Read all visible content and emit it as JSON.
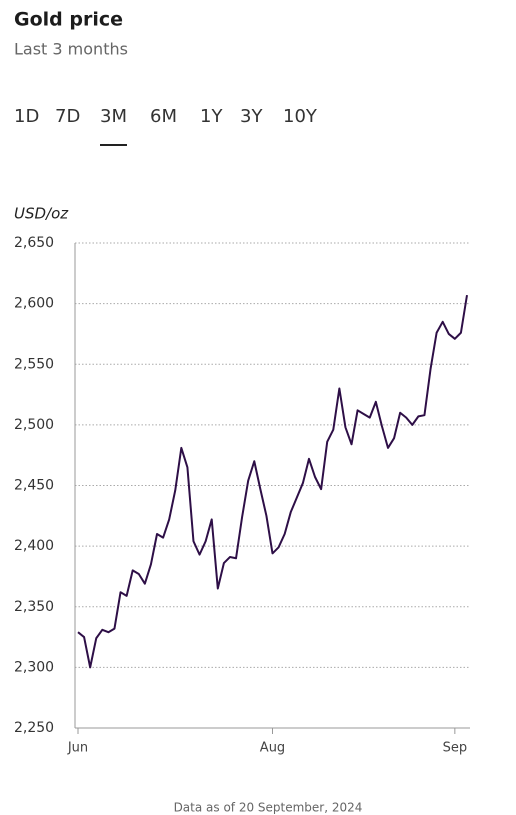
{
  "header": {
    "title": "Gold price",
    "subtitle": "Last 3 months"
  },
  "tabs": [
    "1D",
    "7D",
    "3M",
    "6M",
    "1Y",
    "3Y",
    "10Y"
  ],
  "active_tab_index": 2,
  "chart_data": {
    "type": "line",
    "y_label": "USD/oz",
    "categories": [
      "Jun",
      null,
      null,
      null,
      null,
      null,
      null,
      null,
      null,
      null,
      null,
      null,
      null,
      null,
      null,
      null,
      null,
      null,
      null,
      null,
      null,
      null,
      null,
      null,
      null,
      null,
      null,
      null,
      null,
      null,
      null,
      null,
      "Aug",
      null,
      null,
      null,
      null,
      null,
      null,
      null,
      null,
      null,
      null,
      null,
      null,
      null,
      null,
      null,
      null,
      null,
      null,
      null,
      null,
      null,
      null,
      null,
      null,
      null,
      null,
      null,
      null,
      null,
      "Sep",
      null,
      null
    ],
    "series": [
      {
        "name": "Gold price",
        "color": "#2e0f47",
        "values": [
          2329,
          2325,
          2300,
          2324,
          2331,
          2329,
          2332,
          2362,
          2359,
          2380,
          2377,
          2369,
          2385,
          2410,
          2407,
          2422,
          2446,
          2481,
          2465,
          2404,
          2393,
          2404,
          2422,
          2365,
          2386,
          2391,
          2390,
          2424,
          2454,
          2470,
          2447,
          2425,
          2394,
          2399,
          2410,
          2428,
          2440,
          2452,
          2472,
          2457,
          2447,
          2486,
          2496,
          2530,
          2498,
          2484,
          2512,
          2509,
          2506,
          2519,
          2499,
          2481,
          2489,
          2510,
          2506,
          2500,
          2507,
          2508,
          2546,
          2576,
          2585,
          2575,
          2571,
          2576,
          2607
        ]
      }
    ],
    "ylim": [
      2250,
      2650
    ],
    "yticks": [
      {
        "value": 2250,
        "label": "2,250"
      },
      {
        "value": 2300,
        "label": "2,300"
      },
      {
        "value": 2350,
        "label": "2,350"
      },
      {
        "value": 2400,
        "label": "2,400"
      },
      {
        "value": 2450,
        "label": "2,450"
      },
      {
        "value": 2500,
        "label": "2,500"
      },
      {
        "value": 2550,
        "label": "2,550"
      },
      {
        "value": 2600,
        "label": "2,600"
      },
      {
        "value": 2650,
        "label": "2,650"
      }
    ],
    "grid": true
  },
  "footer": "Data as of 20 September, 2024"
}
